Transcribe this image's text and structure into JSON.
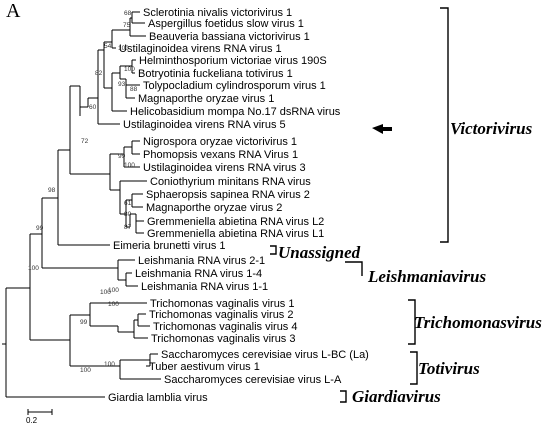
{
  "panel_label": "A",
  "scale_bar_label": "0.2",
  "leaves": [
    "Sclerotinia nivalis victorivirus 1",
    "Aspergillus foetidus slow virus 1",
    "Beauveria bassiana victorivirus 1",
    "Ustilaginoidea virens RNA virus 1",
    "Helminthosporium victoriae virus 190S",
    "Botryotinia fuckeliana totivirus 1",
    "Tolypocladium cylindrosporum virus 1",
    "Magnaporthe oryzae virus 1",
    "Helicobasidium mompa No.17 dsRNA virus",
    "Ustilaginoidea virens RNA virus 5",
    "Nigrospora oryzae victorivirus 1",
    "Phomopsis vexans RNA Virus 1",
    "Ustilaginoidea virens RNA virus 3",
    "Coniothyrium minitans RNA virus",
    "Sphaeropsis sapinea RNA virus 2",
    "Magnaporthe oryzae virus 2",
    "Gremmeniella abietina RNA virus L2",
    "Gremmeniella abietina RNA virus L1",
    "Eimeria brunetti virus 1",
    "Leishmania RNA virus 2-1",
    "Leishmania RNA virus 1-4",
    "Leishmania RNA virus 1-1",
    "Trichomonas vaginalis virus 1",
    "Trichomonas vaginalis virus 2",
    "Trichomonas vaginalis virus 4",
    "Trichomonas vaginalis virus 3",
    "Saccharomyces cerevisiae virus L-BC (La)",
    "Tuber aestivum virus 1",
    "Saccharomyces cerevisiae virus L-A",
    "Giardia lamblia virus"
  ],
  "highlighted_leaf": "Ustilaginoidea virens RNA virus 5",
  "bootstrap_values": [
    "68",
    "75",
    "54",
    "100",
    "82",
    "100",
    "88",
    "93",
    "60",
    "72",
    "99",
    "100",
    "61",
    "80",
    "87",
    "98",
    "99",
    "100",
    "100",
    "100",
    "99",
    "100",
    "100",
    "100"
  ],
  "genera": [
    "Victorivirus",
    "Unassigned",
    "Leishmaniavirus",
    "Trichomonasvirus",
    "Totivirus",
    "Giardiavirus"
  ],
  "colors": {
    "line": "#000000",
    "text": "#000000",
    "bootstrap_text": "#333333",
    "background": "#ffffff"
  }
}
